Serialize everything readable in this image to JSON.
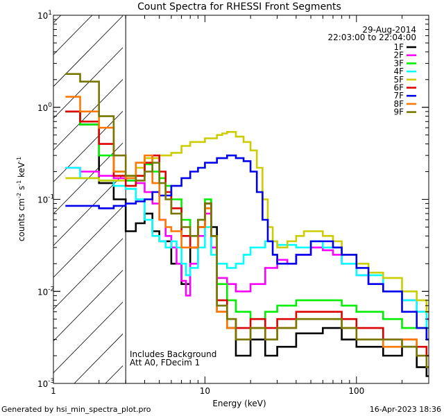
{
  "chart_data": {
    "type": "line",
    "title": "Count Spectra for RHESSI Front Segments",
    "xlabel": "Energy (keV)",
    "ylabel_main": "counts cm",
    "ylabel_sup1": "-2",
    "ylabel_mid": " s",
    "ylabel_sup2": "-1",
    "ylabel_end": " keV",
    "ylabel_sup3": "-1",
    "xscale": "log",
    "yscale": "log",
    "xlim": [
      1,
      300
    ],
    "ylim": [
      0.001,
      10
    ],
    "x_ticks": [
      {
        "value": 1,
        "label": "1"
      },
      {
        "value": 10,
        "label": "10"
      },
      {
        "value": 100,
        "label": "100"
      }
    ],
    "y_ticks": [
      {
        "value": 10,
        "base": "10",
        "exp": "1"
      },
      {
        "value": 1,
        "base": "10",
        "exp": "0"
      },
      {
        "value": 0.1,
        "base": "10",
        "exp": "-1"
      },
      {
        "value": 0.01,
        "base": "10",
        "exp": "-2"
      },
      {
        "value": 0.001,
        "base": "10",
        "exp": "-3"
      }
    ],
    "date": "29-Aug-2014",
    "time_range": "22:03:00 to 22:04:00",
    "annotation_line1": "Includes Background",
    "annotation_line2": "Att A0, FDecim 1",
    "excluded_below_keV": 3,
    "series": [
      {
        "name": "1F",
        "color": "#000000",
        "points": [
          [
            1.2,
            0.9
          ],
          [
            1.5,
            0.65
          ],
          [
            2.0,
            0.15
          ],
          [
            2.5,
            0.1
          ],
          [
            3.0,
            0.045
          ],
          [
            3.5,
            0.055
          ],
          [
            4.0,
            0.07
          ],
          [
            4.5,
            0.045
          ],
          [
            5.0,
            0.035
          ],
          [
            6.0,
            0.02
          ],
          [
            7.0,
            0.012
          ],
          [
            8.0,
            0.03
          ],
          [
            9.0,
            0.05
          ],
          [
            10.0,
            0.09
          ],
          [
            11.0,
            0.05
          ],
          [
            12.0,
            0.006
          ],
          [
            14.0,
            0.004
          ],
          [
            16.0,
            0.002
          ],
          [
            20.0,
            0.003
          ],
          [
            25.0,
            0.002
          ],
          [
            30.0,
            0.0025
          ],
          [
            40.0,
            0.0035
          ],
          [
            60.0,
            0.004
          ],
          [
            80.0,
            0.003
          ],
          [
            100.0,
            0.0025
          ],
          [
            150.0,
            0.002
          ],
          [
            200.0,
            0.0025
          ],
          [
            250.0,
            0.0015
          ],
          [
            290.0,
            0.0012
          ]
        ]
      },
      {
        "name": "2F",
        "color": "#ff00ff",
        "points": [
          [
            1.2,
            0.22
          ],
          [
            1.5,
            0.2
          ],
          [
            2.0,
            0.18
          ],
          [
            2.5,
            0.17
          ],
          [
            3.0,
            0.16
          ],
          [
            3.5,
            0.15
          ],
          [
            4.0,
            0.12
          ],
          [
            4.5,
            0.09
          ],
          [
            5.0,
            0.06
          ],
          [
            5.5,
            0.04
          ],
          [
            6.0,
            0.03
          ],
          [
            6.5,
            0.02
          ],
          [
            7.0,
            0.013
          ],
          [
            7.5,
            0.009
          ],
          [
            8.0,
            0.02
          ],
          [
            9.0,
            0.04
          ],
          [
            10.0,
            0.07
          ],
          [
            11.0,
            0.03
          ],
          [
            12.0,
            0.014
          ],
          [
            14.0,
            0.012
          ],
          [
            16.0,
            0.01
          ],
          [
            20.0,
            0.012
          ],
          [
            25.0,
            0.018
          ],
          [
            30.0,
            0.022
          ],
          [
            35.0,
            0.02
          ],
          [
            40.0,
            0.025
          ],
          [
            50.0,
            0.03
          ],
          [
            60.0,
            0.028
          ],
          [
            70.0,
            0.025
          ],
          [
            80.0,
            0.02
          ],
          [
            100.0,
            0.015
          ],
          [
            120.0,
            0.012
          ],
          [
            150.0,
            0.01
          ],
          [
            200.0,
            0.008
          ],
          [
            250.0,
            0.006
          ],
          [
            290.0,
            0.005
          ]
        ]
      },
      {
        "name": "3F",
        "color": "#00ee00",
        "points": [
          [
            1.2,
            0.9
          ],
          [
            1.5,
            0.65
          ],
          [
            2.0,
            0.3
          ],
          [
            2.5,
            0.2
          ],
          [
            3.0,
            0.16
          ],
          [
            3.5,
            0.18
          ],
          [
            4.0,
            0.24
          ],
          [
            4.5,
            0.2
          ],
          [
            5.0,
            0.17
          ],
          [
            5.5,
            0.14
          ],
          [
            6.0,
            0.1
          ],
          [
            7.0,
            0.06
          ],
          [
            8.0,
            0.04
          ],
          [
            9.0,
            0.06
          ],
          [
            10.0,
            0.1
          ],
          [
            11.0,
            0.04
          ],
          [
            12.0,
            0.012
          ],
          [
            14.0,
            0.008
          ],
          [
            16.0,
            0.006
          ],
          [
            20.0,
            0.005
          ],
          [
            25.0,
            0.006
          ],
          [
            30.0,
            0.007
          ],
          [
            40.0,
            0.008
          ],
          [
            60.0,
            0.008
          ],
          [
            80.0,
            0.007
          ],
          [
            100.0,
            0.006
          ],
          [
            150.0,
            0.005
          ],
          [
            200.0,
            0.004
          ],
          [
            250.0,
            0.004
          ],
          [
            290.0,
            0.003
          ]
        ]
      },
      {
        "name": "4F",
        "color": "#00ffff",
        "points": [
          [
            1.2,
            0.22
          ],
          [
            1.5,
            0.17
          ],
          [
            2.0,
            0.16
          ],
          [
            2.5,
            0.14
          ],
          [
            3.0,
            0.13
          ],
          [
            3.5,
            0.1
          ],
          [
            4.0,
            0.06
          ],
          [
            4.5,
            0.04
          ],
          [
            5.0,
            0.035
          ],
          [
            5.5,
            0.03
          ],
          [
            6.0,
            0.035
          ],
          [
            6.5,
            0.03
          ],
          [
            7.0,
            0.02
          ],
          [
            7.5,
            0.015
          ],
          [
            8.0,
            0.018
          ],
          [
            9.0,
            0.03
          ],
          [
            10.0,
            0.05
          ],
          [
            11.0,
            0.025
          ],
          [
            12.0,
            0.02
          ],
          [
            14.0,
            0.018
          ],
          [
            16.0,
            0.02
          ],
          [
            18.0,
            0.025
          ],
          [
            20.0,
            0.03
          ],
          [
            25.0,
            0.035
          ],
          [
            30.0,
            0.032
          ],
          [
            40.0,
            0.03
          ],
          [
            50.0,
            0.035
          ],
          [
            60.0,
            0.03
          ],
          [
            80.0,
            0.02
          ],
          [
            100.0,
            0.015
          ],
          [
            150.0,
            0.01
          ],
          [
            200.0,
            0.008
          ],
          [
            250.0,
            0.006
          ],
          [
            290.0,
            0.004
          ]
        ]
      },
      {
        "name": "5F",
        "color": "#cccc00",
        "points": [
          [
            1.2,
            0.17
          ],
          [
            1.5,
            0.17
          ],
          [
            2.0,
            0.16
          ],
          [
            2.5,
            0.16
          ],
          [
            3.0,
            0.18
          ],
          [
            3.5,
            0.22
          ],
          [
            4.0,
            0.28
          ],
          [
            5.0,
            0.3
          ],
          [
            6.0,
            0.32
          ],
          [
            7.0,
            0.38
          ],
          [
            8.0,
            0.42
          ],
          [
            10.0,
            0.46
          ],
          [
            12.0,
            0.5
          ],
          [
            13.0,
            0.52
          ],
          [
            14.0,
            0.54
          ],
          [
            16.0,
            0.48
          ],
          [
            18.0,
            0.42
          ],
          [
            20.0,
            0.34
          ],
          [
            22.0,
            0.22
          ],
          [
            24.0,
            0.1
          ],
          [
            26.0,
            0.05
          ],
          [
            28.0,
            0.035
          ],
          [
            30.0,
            0.03
          ],
          [
            35.0,
            0.035
          ],
          [
            40.0,
            0.04
          ],
          [
            45.0,
            0.045
          ],
          [
            50.0,
            0.045
          ],
          [
            60.0,
            0.04
          ],
          [
            70.0,
            0.035
          ],
          [
            80.0,
            0.025
          ],
          [
            100.0,
            0.02
          ],
          [
            120.0,
            0.016
          ],
          [
            150.0,
            0.014
          ],
          [
            200.0,
            0.01
          ],
          [
            250.0,
            0.008
          ],
          [
            290.0,
            0.006
          ]
        ]
      },
      {
        "name": "6F",
        "color": "#dd0000",
        "points": [
          [
            1.2,
            0.9
          ],
          [
            1.5,
            0.7
          ],
          [
            2.0,
            0.4
          ],
          [
            2.5,
            0.18
          ],
          [
            3.0,
            0.14
          ],
          [
            3.5,
            0.18
          ],
          [
            4.0,
            0.25
          ],
          [
            4.5,
            0.3
          ],
          [
            5.0,
            0.2
          ],
          [
            5.5,
            0.12
          ],
          [
            6.0,
            0.08
          ],
          [
            7.0,
            0.04
          ],
          [
            8.0,
            0.03
          ],
          [
            9.0,
            0.05
          ],
          [
            10.0,
            0.09
          ],
          [
            11.0,
            0.04
          ],
          [
            12.0,
            0.008
          ],
          [
            14.0,
            0.005
          ],
          [
            16.0,
            0.004
          ],
          [
            20.0,
            0.005
          ],
          [
            25.0,
            0.004
          ],
          [
            30.0,
            0.005
          ],
          [
            40.0,
            0.006
          ],
          [
            60.0,
            0.006
          ],
          [
            80.0,
            0.005
          ],
          [
            100.0,
            0.004
          ],
          [
            150.0,
            0.003
          ],
          [
            200.0,
            0.003
          ],
          [
            250.0,
            0.0025
          ],
          [
            290.0,
            0.002
          ]
        ]
      },
      {
        "name": "7F",
        "color": "#0000ee",
        "points": [
          [
            1.2,
            0.085
          ],
          [
            1.5,
            0.085
          ],
          [
            2.0,
            0.08
          ],
          [
            2.5,
            0.085
          ],
          [
            3.0,
            0.09
          ],
          [
            3.5,
            0.095
          ],
          [
            4.0,
            0.1
          ],
          [
            4.5,
            0.12
          ],
          [
            5.0,
            0.11
          ],
          [
            6.0,
            0.14
          ],
          [
            7.0,
            0.17
          ],
          [
            8.0,
            0.2
          ],
          [
            9.0,
            0.22
          ],
          [
            10.0,
            0.25
          ],
          [
            12.0,
            0.28
          ],
          [
            14.0,
            0.3
          ],
          [
            16.0,
            0.28
          ],
          [
            18.0,
            0.26
          ],
          [
            20.0,
            0.2
          ],
          [
            22.0,
            0.12
          ],
          [
            24.0,
            0.06
          ],
          [
            26.0,
            0.035
          ],
          [
            28.0,
            0.025
          ],
          [
            30.0,
            0.02
          ],
          [
            35.0,
            0.02
          ],
          [
            40.0,
            0.025
          ],
          [
            50.0,
            0.035
          ],
          [
            60.0,
            0.035
          ],
          [
            70.0,
            0.03
          ],
          [
            80.0,
            0.025
          ],
          [
            100.0,
            0.018
          ],
          [
            120.0,
            0.012
          ],
          [
            150.0,
            0.01
          ],
          [
            200.0,
            0.006
          ],
          [
            250.0,
            0.004
          ],
          [
            290.0,
            0.003
          ]
        ]
      },
      {
        "name": "8F",
        "color": "#ff7700",
        "points": [
          [
            1.2,
            1.3
          ],
          [
            1.5,
            0.9
          ],
          [
            2.0,
            0.6
          ],
          [
            2.5,
            0.2
          ],
          [
            3.0,
            0.17
          ],
          [
            3.5,
            0.25
          ],
          [
            4.0,
            0.3
          ],
          [
            4.5,
            0.15
          ],
          [
            5.0,
            0.06
          ],
          [
            5.5,
            0.05
          ],
          [
            6.0,
            0.045
          ],
          [
            7.0,
            0.03
          ],
          [
            8.0,
            0.03
          ],
          [
            9.0,
            0.05
          ],
          [
            10.0,
            0.08
          ],
          [
            11.0,
            0.04
          ],
          [
            12.0,
            0.006
          ],
          [
            14.0,
            0.004
          ],
          [
            16.0,
            0.003
          ],
          [
            20.0,
            0.004
          ],
          [
            25.0,
            0.003
          ],
          [
            30.0,
            0.004
          ],
          [
            40.0,
            0.005
          ],
          [
            60.0,
            0.005
          ],
          [
            80.0,
            0.004
          ],
          [
            100.0,
            0.003
          ],
          [
            150.0,
            0.0025
          ],
          [
            200.0,
            0.003
          ],
          [
            250.0,
            0.002
          ],
          [
            290.0,
            0.0015
          ]
        ]
      },
      {
        "name": "9F",
        "color": "#777700",
        "points": [
          [
            1.2,
            2.3
          ],
          [
            1.5,
            1.9
          ],
          [
            2.0,
            0.8
          ],
          [
            2.5,
            0.3
          ],
          [
            3.0,
            0.18
          ],
          [
            3.5,
            0.16
          ],
          [
            4.0,
            0.2
          ],
          [
            4.5,
            0.25
          ],
          [
            5.0,
            0.15
          ],
          [
            5.5,
            0.1
          ],
          [
            6.0,
            0.07
          ],
          [
            7.0,
            0.05
          ],
          [
            8.0,
            0.04
          ],
          [
            9.0,
            0.06
          ],
          [
            10.0,
            0.09
          ],
          [
            11.0,
            0.04
          ],
          [
            12.0,
            0.007
          ],
          [
            14.0,
            0.005
          ],
          [
            16.0,
            0.003
          ],
          [
            20.0,
            0.004
          ],
          [
            25.0,
            0.003
          ],
          [
            30.0,
            0.004
          ],
          [
            40.0,
            0.005
          ],
          [
            60.0,
            0.005
          ],
          [
            80.0,
            0.004
          ],
          [
            100.0,
            0.003
          ],
          [
            150.0,
            0.003
          ],
          [
            200.0,
            0.0025
          ],
          [
            250.0,
            0.002
          ],
          [
            290.0,
            0.0015
          ]
        ]
      }
    ]
  },
  "footer": {
    "generator": "Generated by hsi_min_spectra_plot.pro",
    "timestamp": "16-Apr-2023 18:36"
  }
}
